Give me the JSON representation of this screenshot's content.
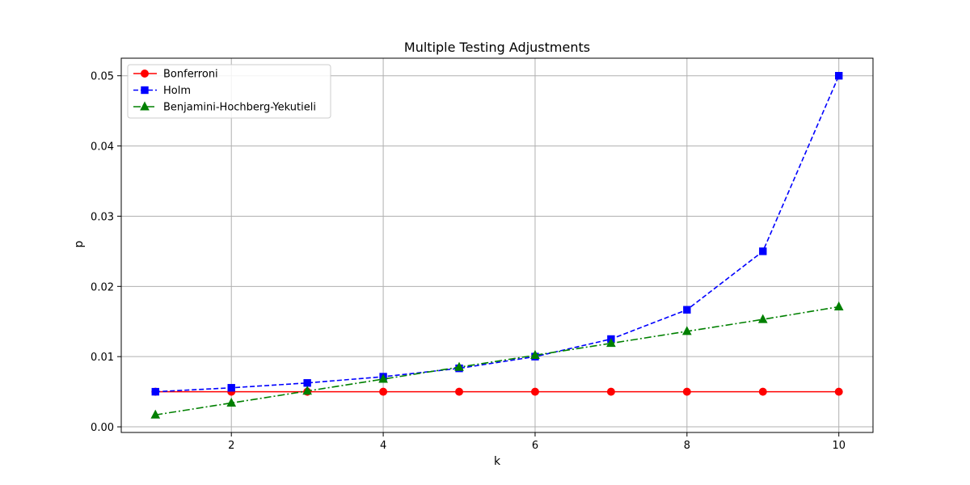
{
  "chart_data": {
    "type": "line",
    "title": "Multiple Testing Adjustments",
    "xlabel": "k",
    "ylabel": "p",
    "xlim": [
      0.55,
      10.45
    ],
    "ylim": [
      -0.0008,
      0.0525
    ],
    "xticks": [
      2,
      4,
      6,
      8,
      10
    ],
    "xtick_labels": [
      "2",
      "4",
      "6",
      "8",
      "10"
    ],
    "yticks": [
      0.0,
      0.01,
      0.02,
      0.03,
      0.04,
      0.05
    ],
    "ytick_labels": [
      "0.00",
      "0.01",
      "0.02",
      "0.03",
      "0.04",
      "0.05"
    ],
    "grid": true,
    "legend_position": "upper-left",
    "x": [
      1,
      2,
      3,
      4,
      5,
      6,
      7,
      8,
      9,
      10
    ],
    "series": [
      {
        "name": "Bonferroni",
        "color": "#ff0000",
        "line_style": "solid",
        "marker": "circle",
        "values": [
          0.005,
          0.005,
          0.005,
          0.005,
          0.005,
          0.005,
          0.005,
          0.005,
          0.005,
          0.005
        ]
      },
      {
        "name": "Holm",
        "color": "#0000ff",
        "line_style": "dashed",
        "marker": "square",
        "values": [
          0.005,
          0.00556,
          0.00625,
          0.00714,
          0.00833,
          0.01,
          0.0125,
          0.01667,
          0.025,
          0.05
        ]
      },
      {
        "name": "Benjamini-Hochberg-Yekutieli",
        "color": "#008000",
        "line_style": "dashdot",
        "marker": "triangle",
        "values": [
          0.0017,
          0.0034,
          0.0051,
          0.0068,
          0.0085,
          0.0102,
          0.0119,
          0.0136,
          0.0153,
          0.0171
        ]
      }
    ]
  }
}
